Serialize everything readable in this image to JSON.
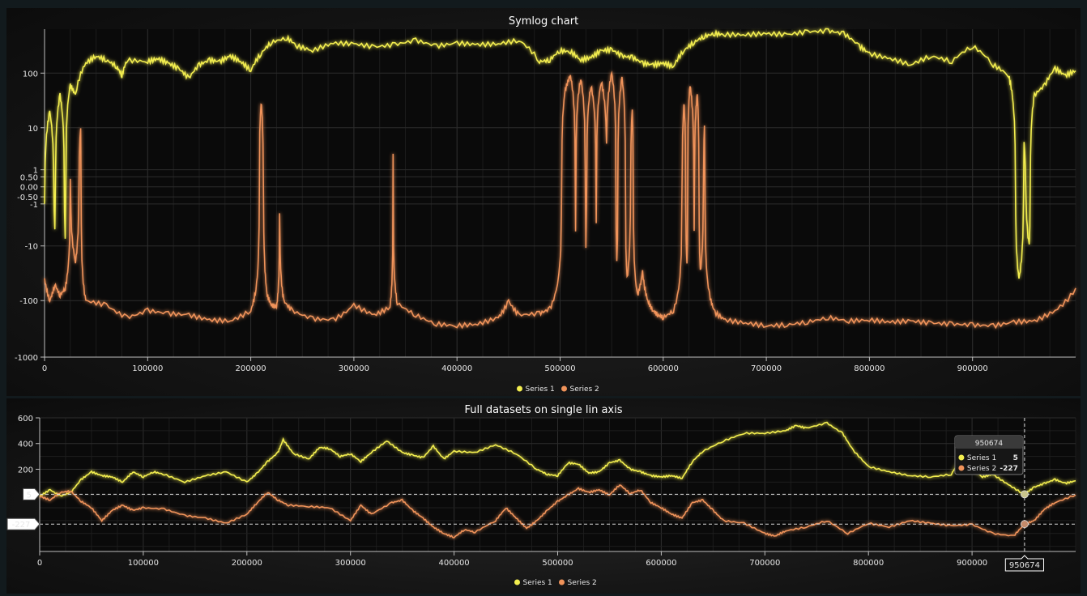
{
  "colors": {
    "series1": "#f3ee4f",
    "series2": "#f0935a",
    "grid": "#2c2c2c",
    "axis": "#bfbfbf"
  },
  "chart_data": [
    {
      "type": "line",
      "title": "Symlog chart",
      "scale": "symlog",
      "xlim": [
        0,
        1000000
      ],
      "x_ticks": [
        0,
        100000,
        200000,
        300000,
        400000,
        500000,
        600000,
        700000,
        800000,
        900000
      ],
      "x_tick_labels": [
        "0",
        "100000",
        "200000",
        "300000",
        "400000",
        "500000",
        "600000",
        "700000",
        "800000",
        "900000"
      ],
      "y_ticks": [
        100,
        10,
        1,
        0.5,
        0,
        -0.5,
        -1,
        -10,
        -100,
        -1000
      ],
      "y_tick_labels": [
        "100",
        "10",
        "1",
        "0.50",
        "0.00",
        "-0.50",
        "-1",
        "-10",
        "-100",
        "-1000"
      ],
      "ylim": [
        -1000,
        600
      ],
      "grid": true,
      "legend": "bottom-center",
      "legend_entries": [
        "Series 1",
        "Series 2"
      ],
      "series": [
        {
          "name": "Series 1",
          "x": [
            0,
            5000,
            10000,
            15000,
            20000,
            25000,
            30000,
            40000,
            50000,
            60000,
            70000,
            75000,
            80000,
            100000,
            110000,
            120000,
            130000,
            140000,
            150000,
            160000,
            170000,
            180000,
            190000,
            200000,
            210000,
            220000,
            235000,
            245000,
            260000,
            280000,
            300000,
            320000,
            340000,
            360000,
            380000,
            400000,
            420000,
            440000,
            460000,
            480000,
            490000,
            500000,
            510000,
            520000,
            530000,
            540000,
            550000,
            560000,
            570000,
            580000,
            590000,
            600000,
            610000,
            620000,
            630000,
            640000,
            650000,
            660000,
            680000,
            700000,
            720000,
            740000,
            760000,
            775000,
            790000,
            800000,
            820000,
            840000,
            860000,
            880000,
            900000,
            920000,
            935000,
            940000,
            945000,
            950000,
            955000,
            960000,
            970000,
            980000,
            990000,
            1000000
          ],
          "y": [
            -1,
            20,
            -5,
            40,
            -8,
            60,
            40,
            150,
            200,
            170,
            130,
            90,
            170,
            160,
            180,
            150,
            120,
            80,
            140,
            170,
            160,
            200,
            160,
            110,
            220,
            350,
            420,
            300,
            250,
            340,
            330,
            290,
            320,
            380,
            300,
            340,
            320,
            330,
            380,
            160,
            170,
            250,
            240,
            170,
            190,
            250,
            260,
            200,
            190,
            150,
            140,
            150,
            130,
            250,
            350,
            450,
            500,
            480,
            480,
            500,
            480,
            540,
            560,
            500,
            300,
            220,
            180,
            140,
            200,
            160,
            300,
            140,
            90,
            20,
            -40,
            5,
            -10,
            40,
            60,
            120,
            90,
            110
          ]
        },
        {
          "name": "Series 2",
          "x": [
            0,
            5000,
            10000,
            15000,
            20000,
            25000,
            30000,
            35000,
            40000,
            60000,
            80000,
            100000,
            120000,
            140000,
            160000,
            180000,
            200000,
            205000,
            210000,
            213000,
            216000,
            220000,
            225000,
            228000,
            232000,
            240000,
            260000,
            280000,
            300000,
            320000,
            335000,
            338000,
            342000,
            360000,
            380000,
            400000,
            420000,
            440000,
            450000,
            460000,
            480000,
            490000,
            500000,
            505000,
            510000,
            515000,
            520000,
            525000,
            530000,
            535000,
            540000,
            545000,
            550000,
            555000,
            560000,
            565000,
            570000,
            575000,
            580000,
            585000,
            590000,
            595000,
            600000,
            610000,
            620000,
            623000,
            626000,
            630000,
            633000,
            636000,
            640000,
            645000,
            650000,
            660000,
            680000,
            700000,
            720000,
            740000,
            760000,
            780000,
            800000,
            820000,
            840000,
            860000,
            880000,
            900000,
            920000,
            940000,
            960000,
            980000,
            1000000
          ],
          "y": [
            -40,
            -100,
            -50,
            -80,
            -60,
            0.5,
            -20,
            10,
            -100,
            -120,
            -200,
            -150,
            -170,
            -180,
            -220,
            -230,
            -150,
            -60,
            30,
            -10,
            -80,
            -120,
            -130,
            -2,
            -100,
            -150,
            -210,
            -220,
            -120,
            -180,
            -130,
            3,
            -110,
            -180,
            -260,
            -280,
            -260,
            -200,
            -100,
            -180,
            -170,
            -140,
            -20,
            50,
            90,
            -5,
            80,
            -10,
            60,
            -3,
            70,
            5,
            100,
            -20,
            80,
            -40,
            20,
            -80,
            -30,
            -100,
            -150,
            -180,
            -200,
            -150,
            30,
            -20,
            60,
            -5,
            40,
            -30,
            10,
            -80,
            -160,
            -220,
            -250,
            -280,
            -270,
            -240,
            -200,
            -230,
            -220,
            -240,
            -230,
            -250,
            -260,
            -270,
            -280,
            -240,
            -230,
            -150,
            -60
          ]
        }
      ]
    },
    {
      "type": "line",
      "title": "Full datasets on single lin axis",
      "scale": "linear",
      "xlim": [
        0,
        1000000
      ],
      "x_ticks": [
        0,
        100000,
        200000,
        300000,
        400000,
        500000,
        600000,
        700000,
        800000,
        900000
      ],
      "x_tick_labels": [
        "0",
        "100000",
        "200000",
        "300000",
        "400000",
        "500000",
        "600000",
        "700000",
        "800000",
        "900000"
      ],
      "ylim": [
        -440,
        600
      ],
      "y_ticks": [
        600,
        400,
        200
      ],
      "y_tick_labels": [
        "600",
        "400",
        "200"
      ],
      "grid": true,
      "legend": "bottom-center",
      "legend_entries": [
        "Series 1",
        "Series 2"
      ],
      "crosshair": {
        "x": 950674,
        "x_label": "950674",
        "header": "950674",
        "rows": [
          {
            "name": "Series 1",
            "value": "5"
          },
          {
            "name": "Series 2",
            "value": "-227"
          }
        ],
        "y_markers": [
          {
            "value": 5,
            "label": "5"
          },
          {
            "value": -227,
            "label": "-227"
          }
        ]
      },
      "series": [
        {
          "name": "Series 1",
          "x": [
            0,
            10000,
            20000,
            30000,
            40000,
            50000,
            60000,
            70000,
            80000,
            90000,
            100000,
            110000,
            120000,
            140000,
            160000,
            180000,
            200000,
            210000,
            220000,
            230000,
            235000,
            245000,
            260000,
            270000,
            280000,
            290000,
            300000,
            310000,
            320000,
            335000,
            350000,
            360000,
            370000,
            380000,
            390000,
            400000,
            420000,
            440000,
            460000,
            480000,
            490000,
            500000,
            510000,
            520000,
            530000,
            540000,
            550000,
            560000,
            570000,
            580000,
            590000,
            600000,
            610000,
            620000,
            630000,
            640000,
            660000,
            680000,
            700000,
            720000,
            730000,
            740000,
            760000,
            775000,
            785000,
            800000,
            820000,
            840000,
            860000,
            880000,
            890000,
            900000,
            910000,
            920000,
            935000,
            950000,
            960000,
            970000,
            980000,
            990000,
            1000000
          ],
          "y": [
            -10,
            40,
            -10,
            20,
            120,
            180,
            150,
            140,
            100,
            180,
            140,
            180,
            160,
            100,
            150,
            180,
            100,
            170,
            260,
            330,
            430,
            320,
            280,
            370,
            360,
            300,
            320,
            260,
            330,
            420,
            330,
            310,
            290,
            380,
            280,
            340,
            330,
            390,
            320,
            200,
            160,
            150,
            250,
            240,
            170,
            180,
            250,
            270,
            200,
            180,
            150,
            140,
            150,
            130,
            260,
            340,
            420,
            480,
            480,
            500,
            540,
            520,
            560,
            480,
            350,
            220,
            180,
            150,
            140,
            160,
            300,
            200,
            140,
            160,
            80,
            5,
            60,
            90,
            120,
            90,
            110
          ]
        },
        {
          "name": "Series 2",
          "x": [
            0,
            10000,
            20000,
            30000,
            40000,
            50000,
            60000,
            70000,
            80000,
            90000,
            100000,
            120000,
            140000,
            160000,
            180000,
            200000,
            210000,
            220000,
            230000,
            240000,
            260000,
            280000,
            300000,
            310000,
            320000,
            340000,
            350000,
            360000,
            370000,
            380000,
            390000,
            400000,
            410000,
            420000,
            440000,
            450000,
            460000,
            470000,
            480000,
            490000,
            500000,
            510000,
            520000,
            530000,
            540000,
            550000,
            560000,
            570000,
            580000,
            590000,
            600000,
            610000,
            620000,
            630000,
            640000,
            650000,
            660000,
            680000,
            700000,
            710000,
            720000,
            740000,
            760000,
            780000,
            800000,
            820000,
            840000,
            860000,
            880000,
            900000,
            920000,
            940000,
            950674,
            960000,
            970000,
            980000,
            1000000
          ],
          "y": [
            -10,
            -40,
            20,
            30,
            -50,
            -100,
            -200,
            -120,
            -80,
            -120,
            -100,
            -110,
            -160,
            -180,
            -220,
            -150,
            -60,
            20,
            -40,
            -80,
            -90,
            -100,
            -200,
            -80,
            -150,
            -60,
            -40,
            -120,
            -180,
            -250,
            -300,
            -330,
            -270,
            -290,
            -200,
            -100,
            -180,
            -260,
            -200,
            -120,
            -50,
            0,
            50,
            20,
            40,
            0,
            80,
            10,
            40,
            -60,
            -100,
            -150,
            -180,
            -60,
            -40,
            -120,
            -200,
            -220,
            -300,
            -320,
            -280,
            -250,
            -200,
            -300,
            -220,
            -250,
            -200,
            -220,
            -240,
            -230,
            -300,
            -320,
            -227,
            -200,
            -110,
            -60,
            0
          ]
        }
      ]
    }
  ]
}
